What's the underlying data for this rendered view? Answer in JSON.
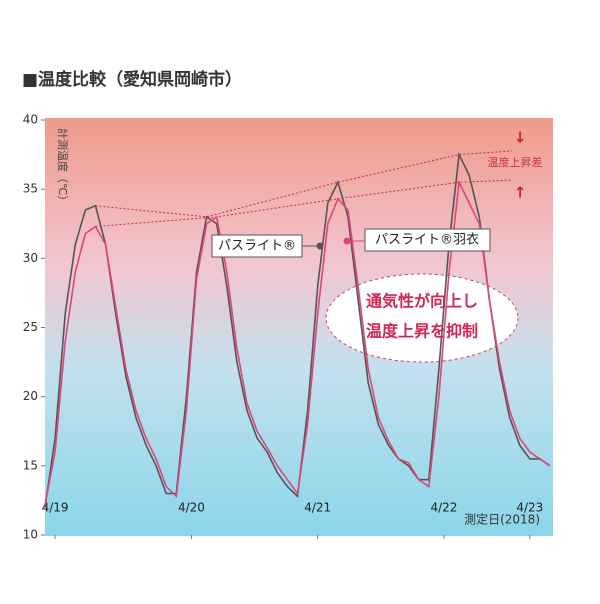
{
  "chart_data": {
    "type": "line",
    "title": "■温度比較（愛知県岡崎市）",
    "y_label": "計測温度（℃）",
    "x_label": "測定日(2018)",
    "xlim": [
      0,
      5
    ],
    "xticks": [
      {
        "value": 0.1,
        "label": "4/19"
      },
      {
        "value": 1.45,
        "label": "4/20"
      },
      {
        "value": 2.7,
        "label": "4/21"
      },
      {
        "value": 3.95,
        "label": "4/22"
      },
      {
        "value": 4.8,
        "label": "4/23"
      }
    ],
    "ylim": [
      10,
      40
    ],
    "yticks": [
      10,
      15,
      20,
      25,
      30,
      35,
      40
    ],
    "x": [
      0.0,
      0.1,
      0.2,
      0.3,
      0.4,
      0.5,
      0.6,
      0.7,
      0.8,
      0.9,
      1.0,
      1.1,
      1.2,
      1.3,
      1.4,
      1.5,
      1.6,
      1.7,
      1.8,
      1.9,
      2.0,
      2.1,
      2.2,
      2.3,
      2.4,
      2.5,
      2.6,
      2.7,
      2.8,
      2.9,
      3.0,
      3.1,
      3.2,
      3.3,
      3.4,
      3.5,
      3.6,
      3.7,
      3.8,
      3.9,
      4.0,
      4.1,
      4.2,
      4.3,
      4.4,
      4.5,
      4.6,
      4.7,
      4.8,
      4.9,
      5.0
    ],
    "series": [
      {
        "name": "パスライト®",
        "color": "#555555",
        "values": [
          12.0,
          17,
          26,
          31,
          33.5,
          33.8,
          31,
          26,
          21.5,
          18.5,
          16.5,
          15,
          13,
          13,
          20,
          29,
          33,
          32.5,
          28,
          22.5,
          19,
          17,
          16,
          14.5,
          13.5,
          12.8,
          19,
          28,
          34,
          35.5,
          33,
          27,
          21,
          18,
          16.5,
          15.5,
          15,
          14,
          14,
          22,
          31,
          37.5,
          36,
          33,
          27,
          22,
          18.5,
          16.5,
          15.5,
          15.5,
          15
        ]
      },
      {
        "name": "パスライト®羽衣",
        "color": "#e0457a",
        "values": [
          12.2,
          16,
          24,
          29,
          31.8,
          32.3,
          31,
          26.5,
          22,
          19,
          17,
          15.5,
          13.5,
          12.8,
          19,
          28.5,
          32.5,
          33,
          29,
          23.5,
          19.5,
          17.5,
          16.3,
          15,
          14,
          13,
          18,
          26,
          32.5,
          34.3,
          33.5,
          28,
          22,
          18.5,
          16.8,
          15.5,
          15.2,
          14,
          13.5,
          20,
          29,
          35.5,
          34,
          32.5,
          27,
          22.5,
          19,
          17,
          16,
          15.5,
          15
        ]
      }
    ],
    "annotations": {
      "diff": "温度上昇差",
      "callout_1": "通気性が向上し",
      "callout_2": "温度上昇を抑制",
      "arrow_down": "↓",
      "arrow_up": "↑"
    }
  }
}
